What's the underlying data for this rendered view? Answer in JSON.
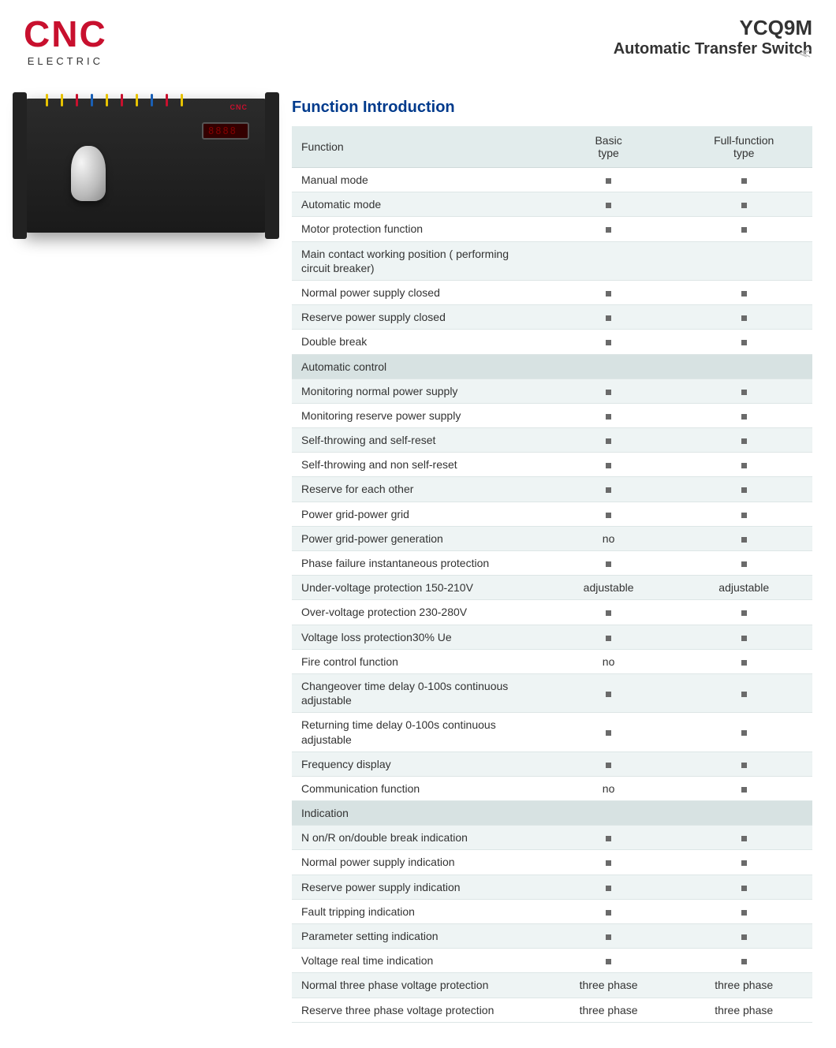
{
  "brand": {
    "name": "CNC",
    "sub": "ELECTRIC",
    "color": "#c8102e"
  },
  "header": {
    "model": "YCQ9M",
    "subtitle": "Automatic Transfer Switch"
  },
  "section_title": "Function Introduction",
  "table": {
    "columns": [
      "Function",
      "Basic type",
      "Full-function type"
    ],
    "col_widths_pct": [
      48,
      26,
      26
    ],
    "header_bg": "#e2ecec",
    "row_even_bg": "#eef4f4",
    "row_odd_bg": "#ffffff",
    "section_bg": "#d7e2e2",
    "border_color": "#dde6e6",
    "marker_color": "#6a6a6a",
    "rows": [
      {
        "type": "data",
        "f": "Manual mode",
        "b": "■",
        "u": "■"
      },
      {
        "type": "data",
        "f": "Automatic mode",
        "b": "■",
        "u": "■"
      },
      {
        "type": "data",
        "f": "Motor protection function",
        "b": "■",
        "u": "■"
      },
      {
        "type": "data",
        "f": "Main contact working position ( performing circuit breaker)",
        "b": "",
        "u": ""
      },
      {
        "type": "data",
        "f": "Normal power supply closed",
        "b": "■",
        "u": "■"
      },
      {
        "type": "data",
        "f": "Reserve power supply closed",
        "b": "■",
        "u": "■"
      },
      {
        "type": "data",
        "f": "Double break",
        "b": "■",
        "u": "■"
      },
      {
        "type": "section",
        "f": "Automatic control"
      },
      {
        "type": "data",
        "f": "Monitoring normal power supply",
        "b": "■",
        "u": "■"
      },
      {
        "type": "data",
        "f": "Monitoring reserve power supply",
        "b": "■",
        "u": "■"
      },
      {
        "type": "data",
        "f": "Self-throwing and self-reset",
        "b": "■",
        "u": "■"
      },
      {
        "type": "data",
        "f": "Self-throwing and non self-reset",
        "b": "■",
        "u": "■"
      },
      {
        "type": "data",
        "f": "Reserve for each other",
        "b": "■",
        "u": "■"
      },
      {
        "type": "data",
        "f": "Power grid-power grid",
        "b": "■",
        "u": "■"
      },
      {
        "type": "data",
        "f": "Power grid-power generation",
        "b": "no",
        "u": "■"
      },
      {
        "type": "data",
        "f": "Phase failure instantaneous protection",
        "b": "■",
        "u": "■"
      },
      {
        "type": "data",
        "f": "Under-voltage protection 150-210V",
        "b": "adjustable",
        "u": "adjustable"
      },
      {
        "type": "data",
        "f": "Over-voltage protection 230-280V",
        "b": "■",
        "u": "■"
      },
      {
        "type": "data",
        "f": "Voltage loss protection30% Ue",
        "b": "■",
        "u": "■"
      },
      {
        "type": "data",
        "f": "Fire control function",
        "b": "no",
        "u": "■"
      },
      {
        "type": "data",
        "f": "Changeover time delay 0-100s continuous adjustable",
        "b": "■",
        "u": "■"
      },
      {
        "type": "data",
        "f": "Returning time delay 0-100s continuous adjustable",
        "b": "■",
        "u": "■"
      },
      {
        "type": "data",
        "f": "Frequency display",
        "b": "■",
        "u": "■"
      },
      {
        "type": "data",
        "f": "Communication function",
        "b": "no",
        "u": "■"
      },
      {
        "type": "section",
        "f": "Indication"
      },
      {
        "type": "data",
        "f": "N on/R on/double break indication",
        "b": "■",
        "u": "■"
      },
      {
        "type": "data",
        "f": "Normal power supply indication",
        "b": "■",
        "u": "■"
      },
      {
        "type": "data",
        "f": "Reserve power supply indication",
        "b": "■",
        "u": "■"
      },
      {
        "type": "data",
        "f": "Fault tripping indication",
        "b": "■",
        "u": "■"
      },
      {
        "type": "data",
        "f": "Parameter setting indication",
        "b": "■",
        "u": "■"
      },
      {
        "type": "data",
        "f": "Voltage real time indication",
        "b": "■",
        "u": "■"
      },
      {
        "type": "data",
        "f": "Normal three phase voltage protection",
        "b": "three phase",
        "u": "three phase"
      },
      {
        "type": "data",
        "f": "Reserve three phase voltage protection",
        "b": "three phase",
        "u": "three phase"
      }
    ]
  },
  "wire_colors": [
    "#e6c200",
    "#e6c200",
    "#c8102e",
    "#1a5fb4",
    "#e6c200",
    "#c8102e",
    "#e6c200",
    "#1a5fb4",
    "#c8102e",
    "#e6c200"
  ]
}
